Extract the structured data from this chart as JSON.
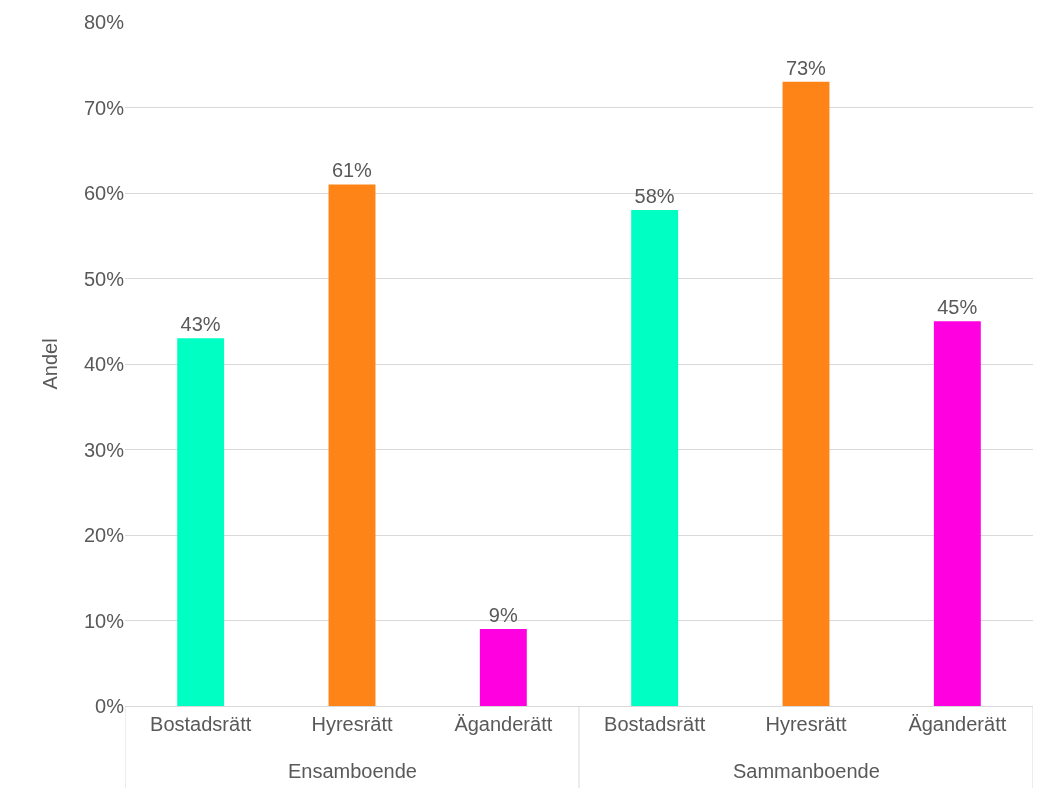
{
  "chart_data": {
    "type": "bar",
    "ylabel": "Andel",
    "categories": [
      "Bostadsrätt",
      "Hyresrätt",
      "Äganderätt",
      "Bostadsrätt",
      "Hyresrätt",
      "Äganderätt"
    ],
    "values": [
      43,
      61,
      9,
      58,
      73,
      45
    ],
    "colors": [
      "#00ffc3",
      "#ff8418",
      "#ff00e1",
      "#00ffc3",
      "#ff8418",
      "#ff00e1"
    ],
    "value_labels": [
      "43%",
      "61%",
      "9%",
      "58%",
      "73%",
      "45%"
    ],
    "annotations": [
      "Ensamboende",
      "Sammanboende"
    ],
    "ylim": [
      0,
      80
    ],
    "yticks": [
      {
        "value": 0,
        "label": "0%"
      },
      {
        "value": 10,
        "label": "10%"
      },
      {
        "value": 20,
        "label": "20%"
      },
      {
        "value": 30,
        "label": "30%"
      },
      {
        "value": 40,
        "label": "40%"
      },
      {
        "value": 50,
        "label": "50%"
      },
      {
        "value": 60,
        "label": "60%"
      },
      {
        "value": 70,
        "label": "70%"
      },
      {
        "value": 80,
        "label": "80%"
      }
    ],
    "grid": "y"
  }
}
